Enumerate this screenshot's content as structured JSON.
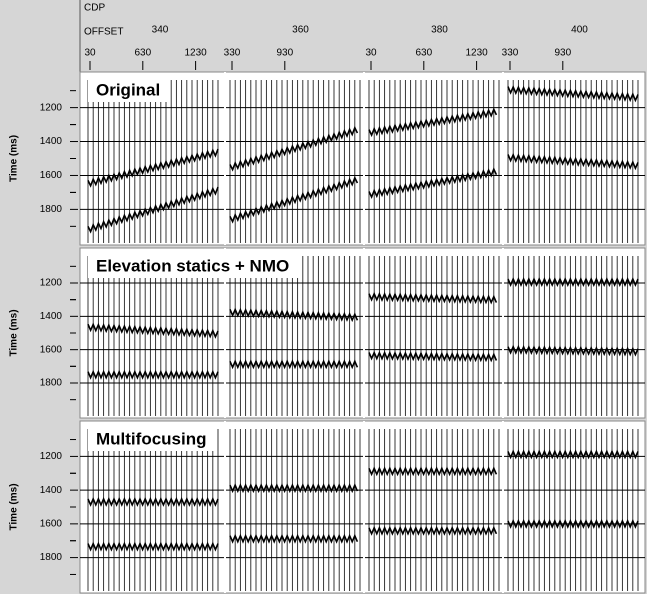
{
  "header": {
    "cdp_label": "CDP",
    "offset_label": "OFFSET",
    "cdps": [
      340,
      360,
      380,
      400
    ],
    "offsets": [
      [
        30,
        630,
        1230
      ],
      [
        330,
        930
      ],
      [
        30,
        630,
        1230
      ],
      [
        330,
        930
      ]
    ]
  },
  "y_axis_label": "Time (ms)",
  "ylim": [
    990,
    2010
  ],
  "yticks": [
    1200,
    1400,
    1600,
    1800
  ],
  "panels": [
    {
      "title": "Original",
      "events": [
        [
          [
            1647,
            1459
          ],
          [
            1918,
            1682
          ]
        ],
        [
          [
            1553,
            1329
          ],
          [
            1859,
            1624
          ]
        ],
        [
          [
            1347,
            1224
          ],
          [
            1712,
            1576
          ]
        ],
        [
          [
            1094,
            1141
          ],
          [
            1494,
            1541
          ]
        ]
      ]
    },
    {
      "title": "Elevation statics + NMO",
      "events": [
        [
          [
            1465,
            1506
          ],
          [
            1750,
            1750
          ]
        ],
        [
          [
            1376,
            1406
          ],
          [
            1688,
            1688
          ]
        ],
        [
          [
            1282,
            1300
          ],
          [
            1635,
            1647
          ]
        ],
        [
          [
            1194,
            1194
          ],
          [
            1600,
            1612
          ]
        ]
      ]
    },
    {
      "title": "Multifocusing",
      "events": [
        [
          [
            1470,
            1470
          ],
          [
            1735,
            1735
          ]
        ],
        [
          [
            1388,
            1388
          ],
          [
            1688,
            1688
          ]
        ],
        [
          [
            1288,
            1288
          ],
          [
            1641,
            1641
          ]
        ],
        [
          [
            1188,
            1188
          ],
          [
            1600,
            1600
          ]
        ]
      ]
    }
  ]
}
